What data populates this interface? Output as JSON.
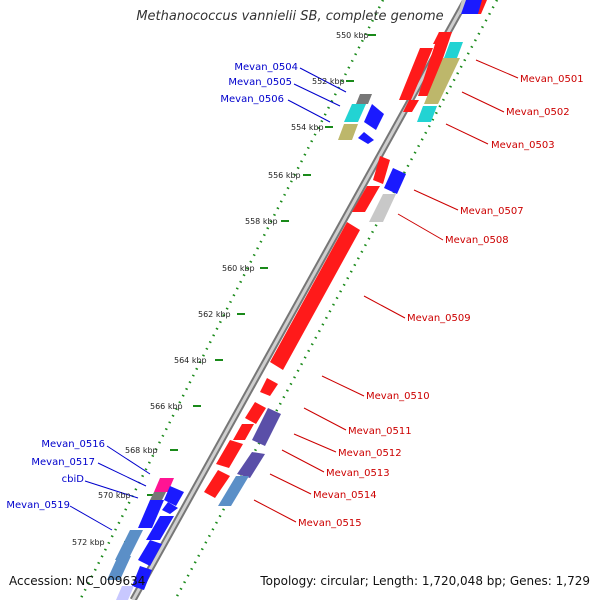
{
  "title": "Methanococcus vannielii SB, complete genome",
  "footer": {
    "accession": "Accession: NC_009634",
    "topology": "Topology: circular; Length: 1,720,048 bp; Genes: 1,729"
  },
  "ticks": [
    "550 kbp",
    "552 kbp",
    "554 kbp",
    "556 kbp",
    "558 kbp",
    "560 kbp",
    "562 kbp",
    "564 kbp",
    "566 kbp",
    "568 kbp",
    "570 kbp",
    "572 kbp"
  ],
  "colors": {
    "red_gene": "#ff1a1a",
    "blue_gene": "#1a1aff",
    "cyan_gene": "#22d3d3",
    "olive_gene": "#bdb76b",
    "gray_gene": "#c8c8c8",
    "slate_gene": "#5a4fa8",
    "steel_gene": "#5b8fc7",
    "pink_gene": "#ff1493",
    "red_label": "#cc0000",
    "blue_label": "#0000cc",
    "tick_dots": "#1a8a1a"
  },
  "labels_right": [
    "Mevan_0501",
    "Mevan_0502",
    "Mevan_0503",
    "Mevan_0507",
    "Mevan_0508",
    "Mevan_0509",
    "Mevan_0510",
    "Mevan_0511",
    "Mevan_0512",
    "Mevan_0513",
    "Mevan_0514",
    "Mevan_0515"
  ],
  "labels_left": [
    "Mevan_0504",
    "Mevan_0505",
    "Mevan_0506",
    "Mevan_0516",
    "Mevan_0517",
    "cbiD",
    "Mevan_0519"
  ]
}
